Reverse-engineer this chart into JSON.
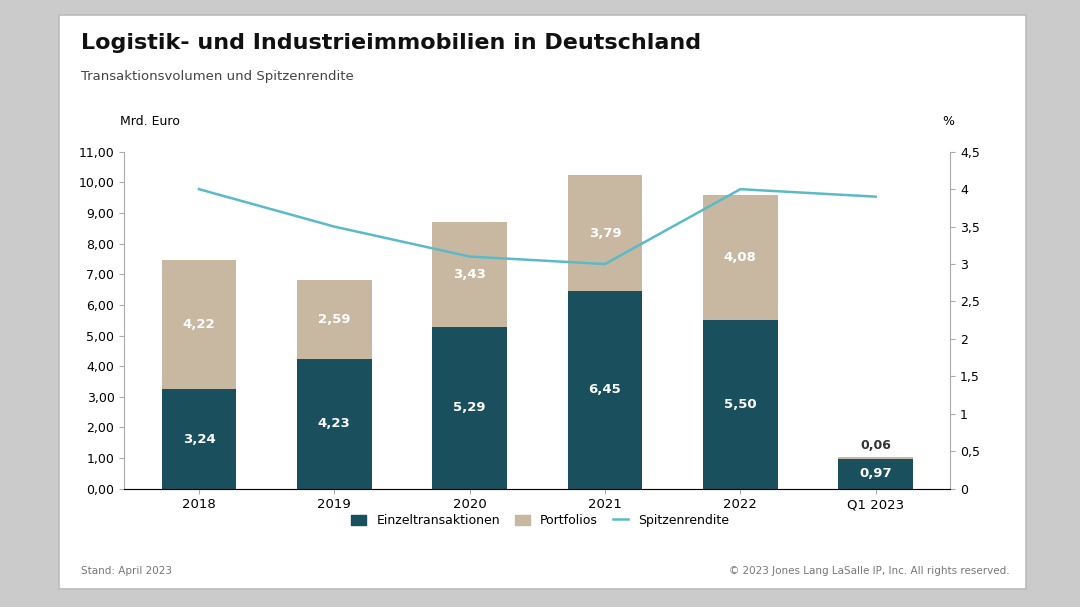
{
  "title": "Logistik- und Industrieimmobilien in Deutschland",
  "subtitle": "Transaktionsvolumen und Spitzenrendite",
  "ylabel_left": "Mrd. Euro",
  "ylabel_right": "%",
  "categories": [
    "2018",
    "2019",
    "2020",
    "2021",
    "2022",
    "Q1 2023"
  ],
  "einzeltransaktionen": [
    3.24,
    4.23,
    5.29,
    6.45,
    5.5,
    0.97
  ],
  "portfolios": [
    4.22,
    2.59,
    3.43,
    3.79,
    4.08,
    0.06
  ],
  "spitzenrendite": [
    4.0,
    3.5,
    3.1,
    3.0,
    4.0,
    3.9
  ],
  "bar_color_dark": "#1a4f5e",
  "bar_color_light": "#c8b8a2",
  "line_color": "#5bbac8",
  "ylim_left": [
    0,
    11
  ],
  "ylim_right": [
    0,
    4.5
  ],
  "yticks_left": [
    0.0,
    1.0,
    2.0,
    3.0,
    4.0,
    5.0,
    6.0,
    7.0,
    8.0,
    9.0,
    10.0,
    11.0
  ],
  "ytick_labels_left": [
    "0,00",
    "1,00",
    "2,00",
    "3,00",
    "4,00",
    "5,00",
    "6,00",
    "7,00",
    "8,00",
    "9,00",
    "10,00",
    "11,00"
  ],
  "yticks_right": [
    0,
    0.5,
    1.0,
    1.5,
    2.0,
    2.5,
    3.0,
    3.5,
    4.0,
    4.5
  ],
  "ytick_labels_right": [
    "0",
    "0,5",
    "1",
    "1,5",
    "2",
    "2,5",
    "3",
    "3,5",
    "4",
    "4,5"
  ],
  "legend_labels": [
    "Einzeltransaktionen",
    "Portfolios",
    "Spitzenrendite"
  ],
  "footer_left": "Stand: April 2023",
  "footer_right": "© 2023 Jones Lang LaSalle IP, Inc. All rights reserved.",
  "background_color": "#ffffff",
  "outer_background": "#cbcbcb",
  "bar_width": 0.55
}
